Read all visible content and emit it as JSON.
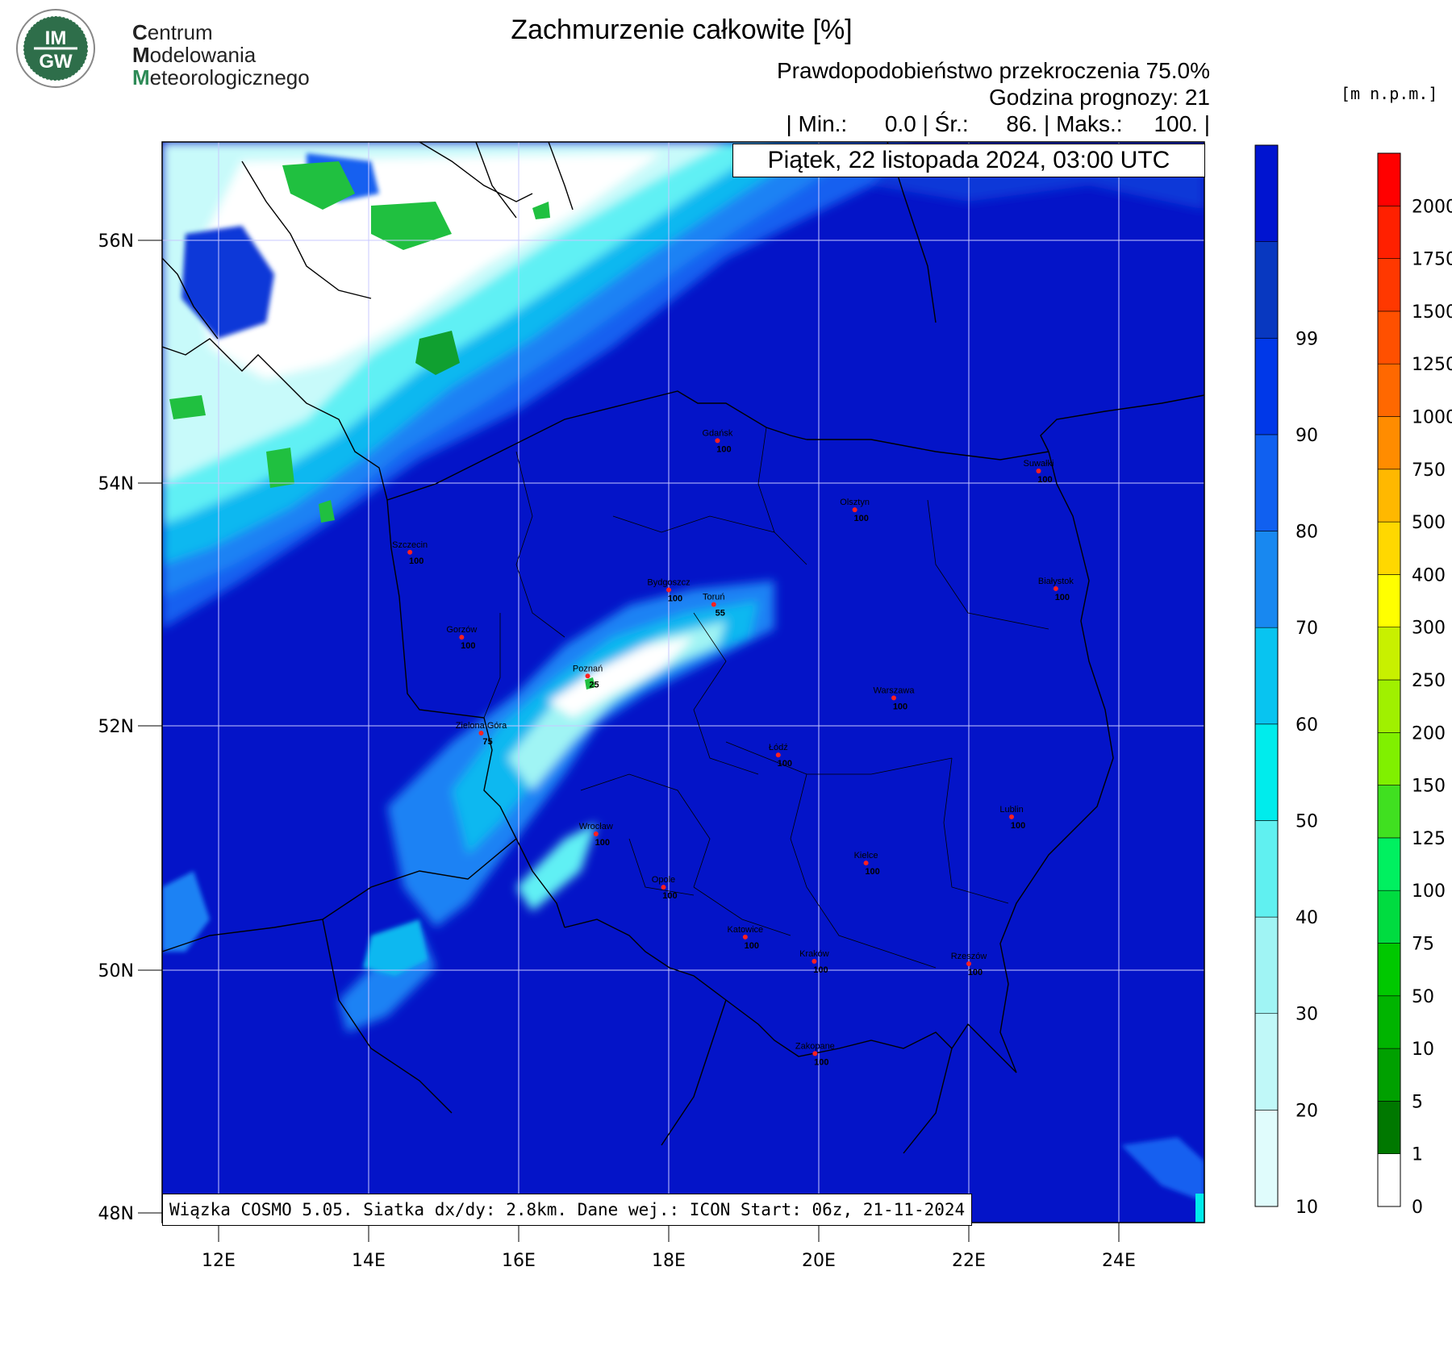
{
  "logo": {
    "badge_top": "IM",
    "badge_bottom": "GW",
    "line1_cap": "C",
    "line1_rest": "entrum",
    "line2_cap": "M",
    "line2_rest": "odelowania",
    "line3_cap": "M",
    "line3_rest": "eteorologicznego"
  },
  "header": {
    "title": "Zachmurzenie całkowite [%]",
    "probability": "Prawdopodobieństwo przekroczenia 75.0%",
    "forecast_hour": "Godzina prognozy: 21",
    "stats": "| Min.:      0.0 | Śr.:      86. | Maks.:     100. |",
    "date": "Piątek, 22 listopada 2024, 03:00 UTC",
    "unit": "[m n.p.m.]"
  },
  "footer": {
    "text": "Wiązka COSMO 5.05. Siatka dx/dy: 2.8km. Dane wej.: ICON Start: 06z, 21-11-2024"
  },
  "axes": {
    "lat_labels": [
      "56N",
      "54N",
      "52N",
      "50N",
      "48N"
    ],
    "lon_labels": [
      "12E",
      "14E",
      "16E",
      "18E",
      "20E",
      "22E",
      "24E"
    ]
  },
  "colors": {
    "ocean_deep": "#0a10c8",
    "cloud_100": "#0010d0",
    "blue_90": "#0838d8",
    "blue_80": "#1460f0",
    "blue_70": "#1c82f4",
    "cyan_60": "#10b8f0",
    "cyan_50": "#00ecf0",
    "light_40": "#60f4f4",
    "light_30": "#a0f8f8",
    "light_20": "#d4fcfc",
    "white": "#ffffff",
    "land_green": "#20c040"
  },
  "colorbar_cloud": {
    "labels": [
      "10",
      "20",
      "30",
      "40",
      "50",
      "60",
      "70",
      "80",
      "90",
      "99"
    ],
    "colors": [
      "#e0fcfc",
      "#c0f8f8",
      "#a0f4f4",
      "#60f0f0",
      "#00ecec",
      "#08c4f0",
      "#1888f0",
      "#1060f0",
      "#0038e8",
      "#0838c0",
      "#0014d0"
    ]
  },
  "colorbar_terrain": {
    "labels": [
      "0",
      "1",
      "5",
      "10",
      "50",
      "75",
      "100",
      "125",
      "150",
      "200",
      "250",
      "300",
      "400",
      "500",
      "750",
      "1000",
      "1250",
      "1500",
      "1750",
      "2000"
    ],
    "colors": [
      "#ffffff",
      "#007800",
      "#00a000",
      "#00b400",
      "#00c800",
      "#00dc40",
      "#00f060",
      "#40e020",
      "#80f000",
      "#a0f000",
      "#c8f000",
      "#ffff00",
      "#ffd800",
      "#ffb800",
      "#ff8c00",
      "#ff6800",
      "#ff5000",
      "#ff3800",
      "#ff2000",
      "#ff0000"
    ]
  },
  "cities": [
    {
      "name": "Gdańsk",
      "value": "100",
      "lon": 18.65,
      "lat": 54.35
    },
    {
      "name": "Suwałki",
      "value": "100",
      "lon": 22.93,
      "lat": 54.1
    },
    {
      "name": "Olsztyn",
      "value": "100",
      "lon": 20.48,
      "lat": 53.78
    },
    {
      "name": "Szczecin",
      "value": "100",
      "lon": 14.55,
      "lat": 53.43
    },
    {
      "name": "Białystok",
      "value": "100",
      "lon": 23.16,
      "lat": 53.13
    },
    {
      "name": "Bydgoszcz",
      "value": "100",
      "lon": 18.0,
      "lat": 53.12
    },
    {
      "name": "Toruń",
      "value": "55",
      "lon": 18.6,
      "lat": 53.0
    },
    {
      "name": "Gorzów",
      "value": "100",
      "lon": 15.24,
      "lat": 52.73
    },
    {
      "name": "Poznań",
      "value": "25",
      "lon": 16.92,
      "lat": 52.41
    },
    {
      "name": "Warszawa",
      "value": "100",
      "lon": 21.0,
      "lat": 52.23
    },
    {
      "name": "Zielona Góra",
      "value": "75",
      "lon": 15.5,
      "lat": 51.94
    },
    {
      "name": "Łódź",
      "value": "100",
      "lon": 19.46,
      "lat": 51.76
    },
    {
      "name": "Lublin",
      "value": "100",
      "lon": 22.57,
      "lat": 51.25
    },
    {
      "name": "Wrocław",
      "value": "100",
      "lon": 17.03,
      "lat": 51.11
    },
    {
      "name": "Kielce",
      "value": "100",
      "lon": 20.63,
      "lat": 50.87
    },
    {
      "name": "Opole",
      "value": "100",
      "lon": 17.93,
      "lat": 50.67
    },
    {
      "name": "Katowice",
      "value": "100",
      "lon": 19.02,
      "lat": 50.26
    },
    {
      "name": "Kraków",
      "value": "100",
      "lon": 19.94,
      "lat": 50.06
    },
    {
      "name": "Rzeszów",
      "value": "100",
      "lon": 22.0,
      "lat": 50.04
    },
    {
      "name": "Zakopane",
      "value": "100",
      "lon": 19.95,
      "lat": 49.3
    }
  ]
}
